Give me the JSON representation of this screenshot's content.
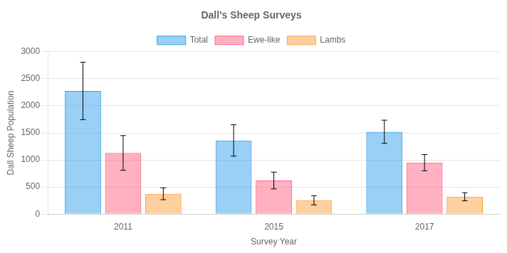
{
  "chart_data": {
    "type": "bar",
    "title": "Dall's Sheep Surveys",
    "x_label": "Survey Year",
    "y_label": "Dall Sheep Population",
    "categories": [
      "2011",
      "2015",
      "2017"
    ],
    "series": [
      {
        "name": "Total",
        "values": [
          2275,
          1360,
          1520
        ],
        "errors": [
          530,
          290,
          215
        ]
      },
      {
        "name": "Ewe-like",
        "values": [
          1130,
          620,
          950
        ],
        "errors": [
          320,
          155,
          150
        ]
      },
      {
        "name": "Lambs",
        "values": [
          375,
          255,
          320
        ],
        "errors": [
          110,
          85,
          75
        ]
      }
    ],
    "ylim": [
      0,
      3000
    ],
    "yticks": [
      0,
      500,
      1000,
      1500,
      2000,
      2500,
      3000
    ],
    "grid": true,
    "legend": "top"
  }
}
